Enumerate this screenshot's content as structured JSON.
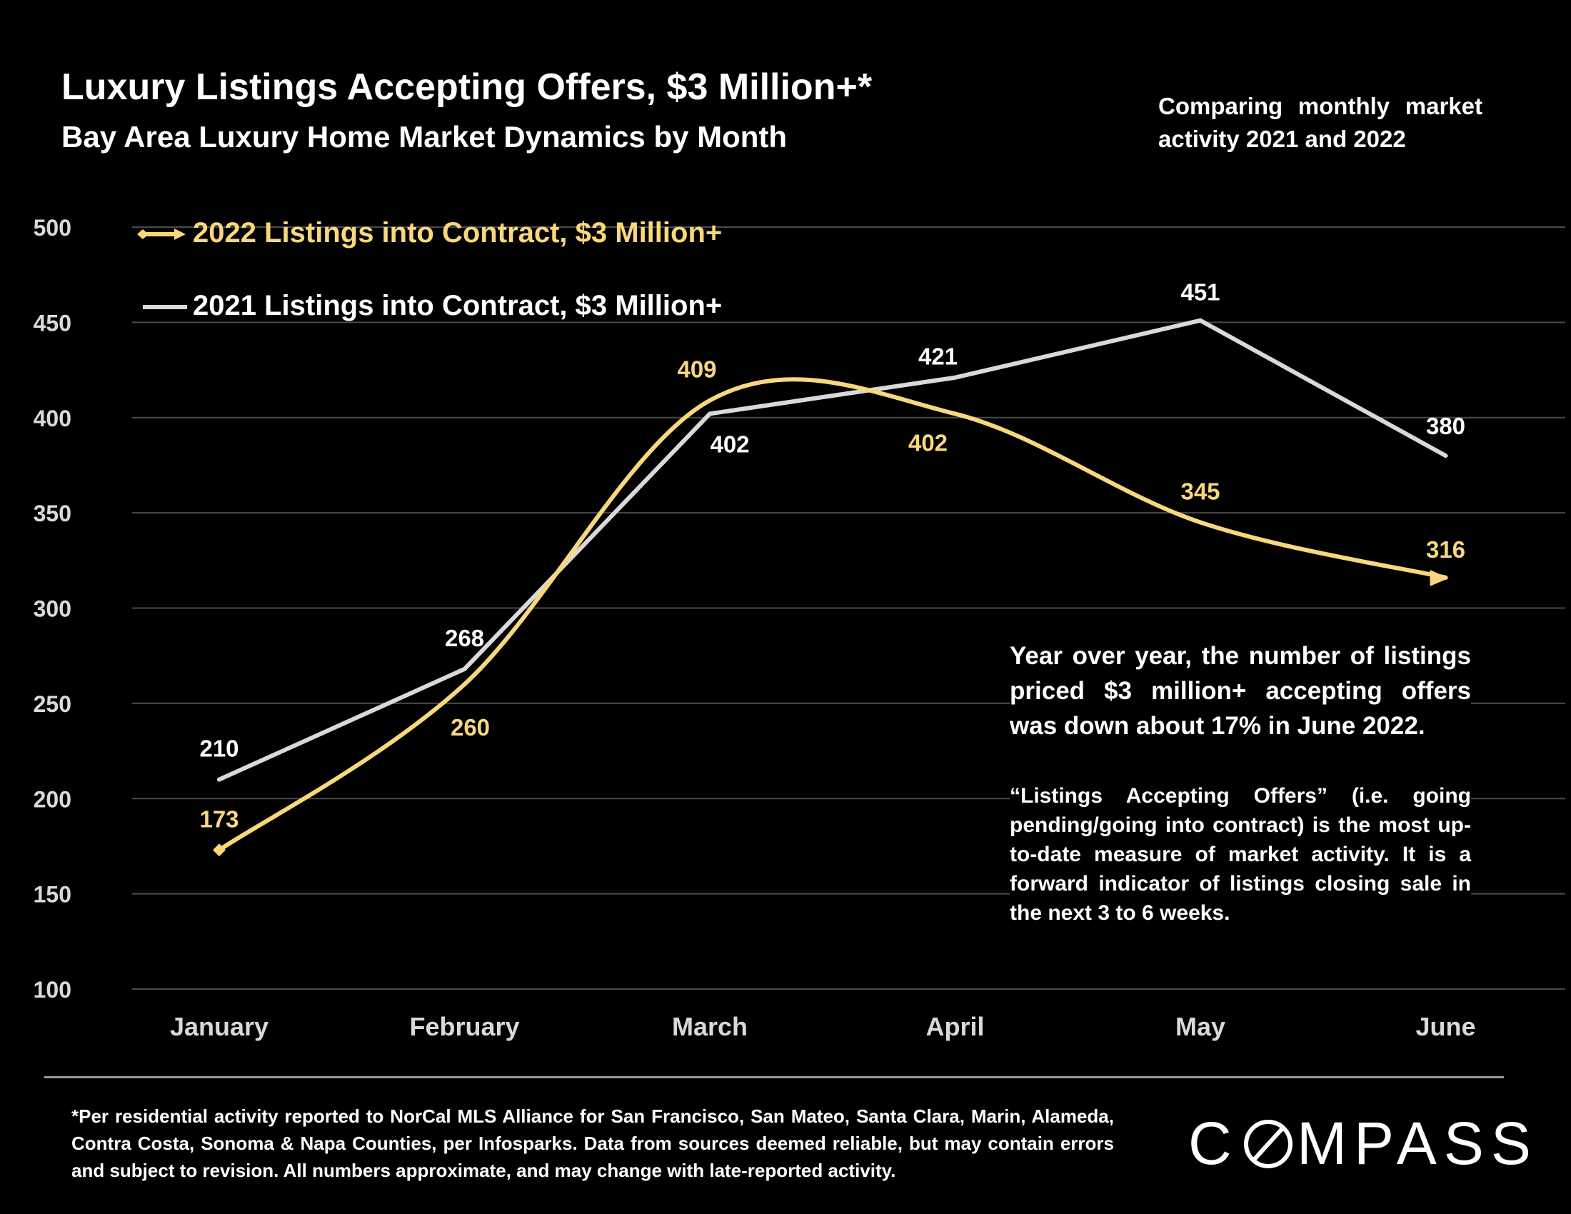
{
  "header": {
    "title": "Luxury Listings Accepting Offers, $3 Million+*",
    "subtitle": "Bay Area Luxury Home Market Dynamics by Month",
    "compare_note": "Comparing monthly market activity 2021 and 2022"
  },
  "notes": {
    "main": "Year over year, the number of listings priced $3 million+ accepting offers was down about 17% in June 2022.",
    "sub": "“Listings Accepting Offers” (i.e. going pending/going into contract) is the most up-to-date measure of market activity. It is a forward indicator of listings closing sale in the next 3 to 6 weeks."
  },
  "footer": {
    "footnote": "*Per residential activity reported to NorCal MLS Alliance for San Francisco, San Mateo, Santa Clara, Marin, Alameda, Contra Costa, Sonoma & Napa Counties, per Infosparks. Data from sources deemed reliable, but may contain errors and subject to revision. All numbers approximate, and may change with late-reported activity.",
    "logo": "COMPASS"
  },
  "colors": {
    "series_2022": "#f9d77c",
    "series_2021": "#d9d9d9",
    "grid": "#4a4a4a",
    "background": "#000000"
  },
  "chart_data": {
    "type": "line",
    "categories": [
      "January",
      "February",
      "March",
      "April",
      "May",
      "June"
    ],
    "series": [
      {
        "name": "2022 Listings into Contract, $3 Million+",
        "values": [
          173,
          260,
          409,
          402,
          345,
          316
        ],
        "smooth": true,
        "color": "#f9d77c"
      },
      {
        "name": "2021 Listings into Contract, $3 Million+",
        "values": [
          210,
          268,
          402,
          421,
          451,
          380
        ],
        "smooth": false,
        "color": "#d9d9d9"
      }
    ],
    "y_ticks": [
      100,
      150,
      200,
      250,
      300,
      350,
      400,
      450,
      500
    ],
    "ylim": [
      100,
      500
    ],
    "grid": true,
    "legend_position": "top-left",
    "data_labels": true
  }
}
